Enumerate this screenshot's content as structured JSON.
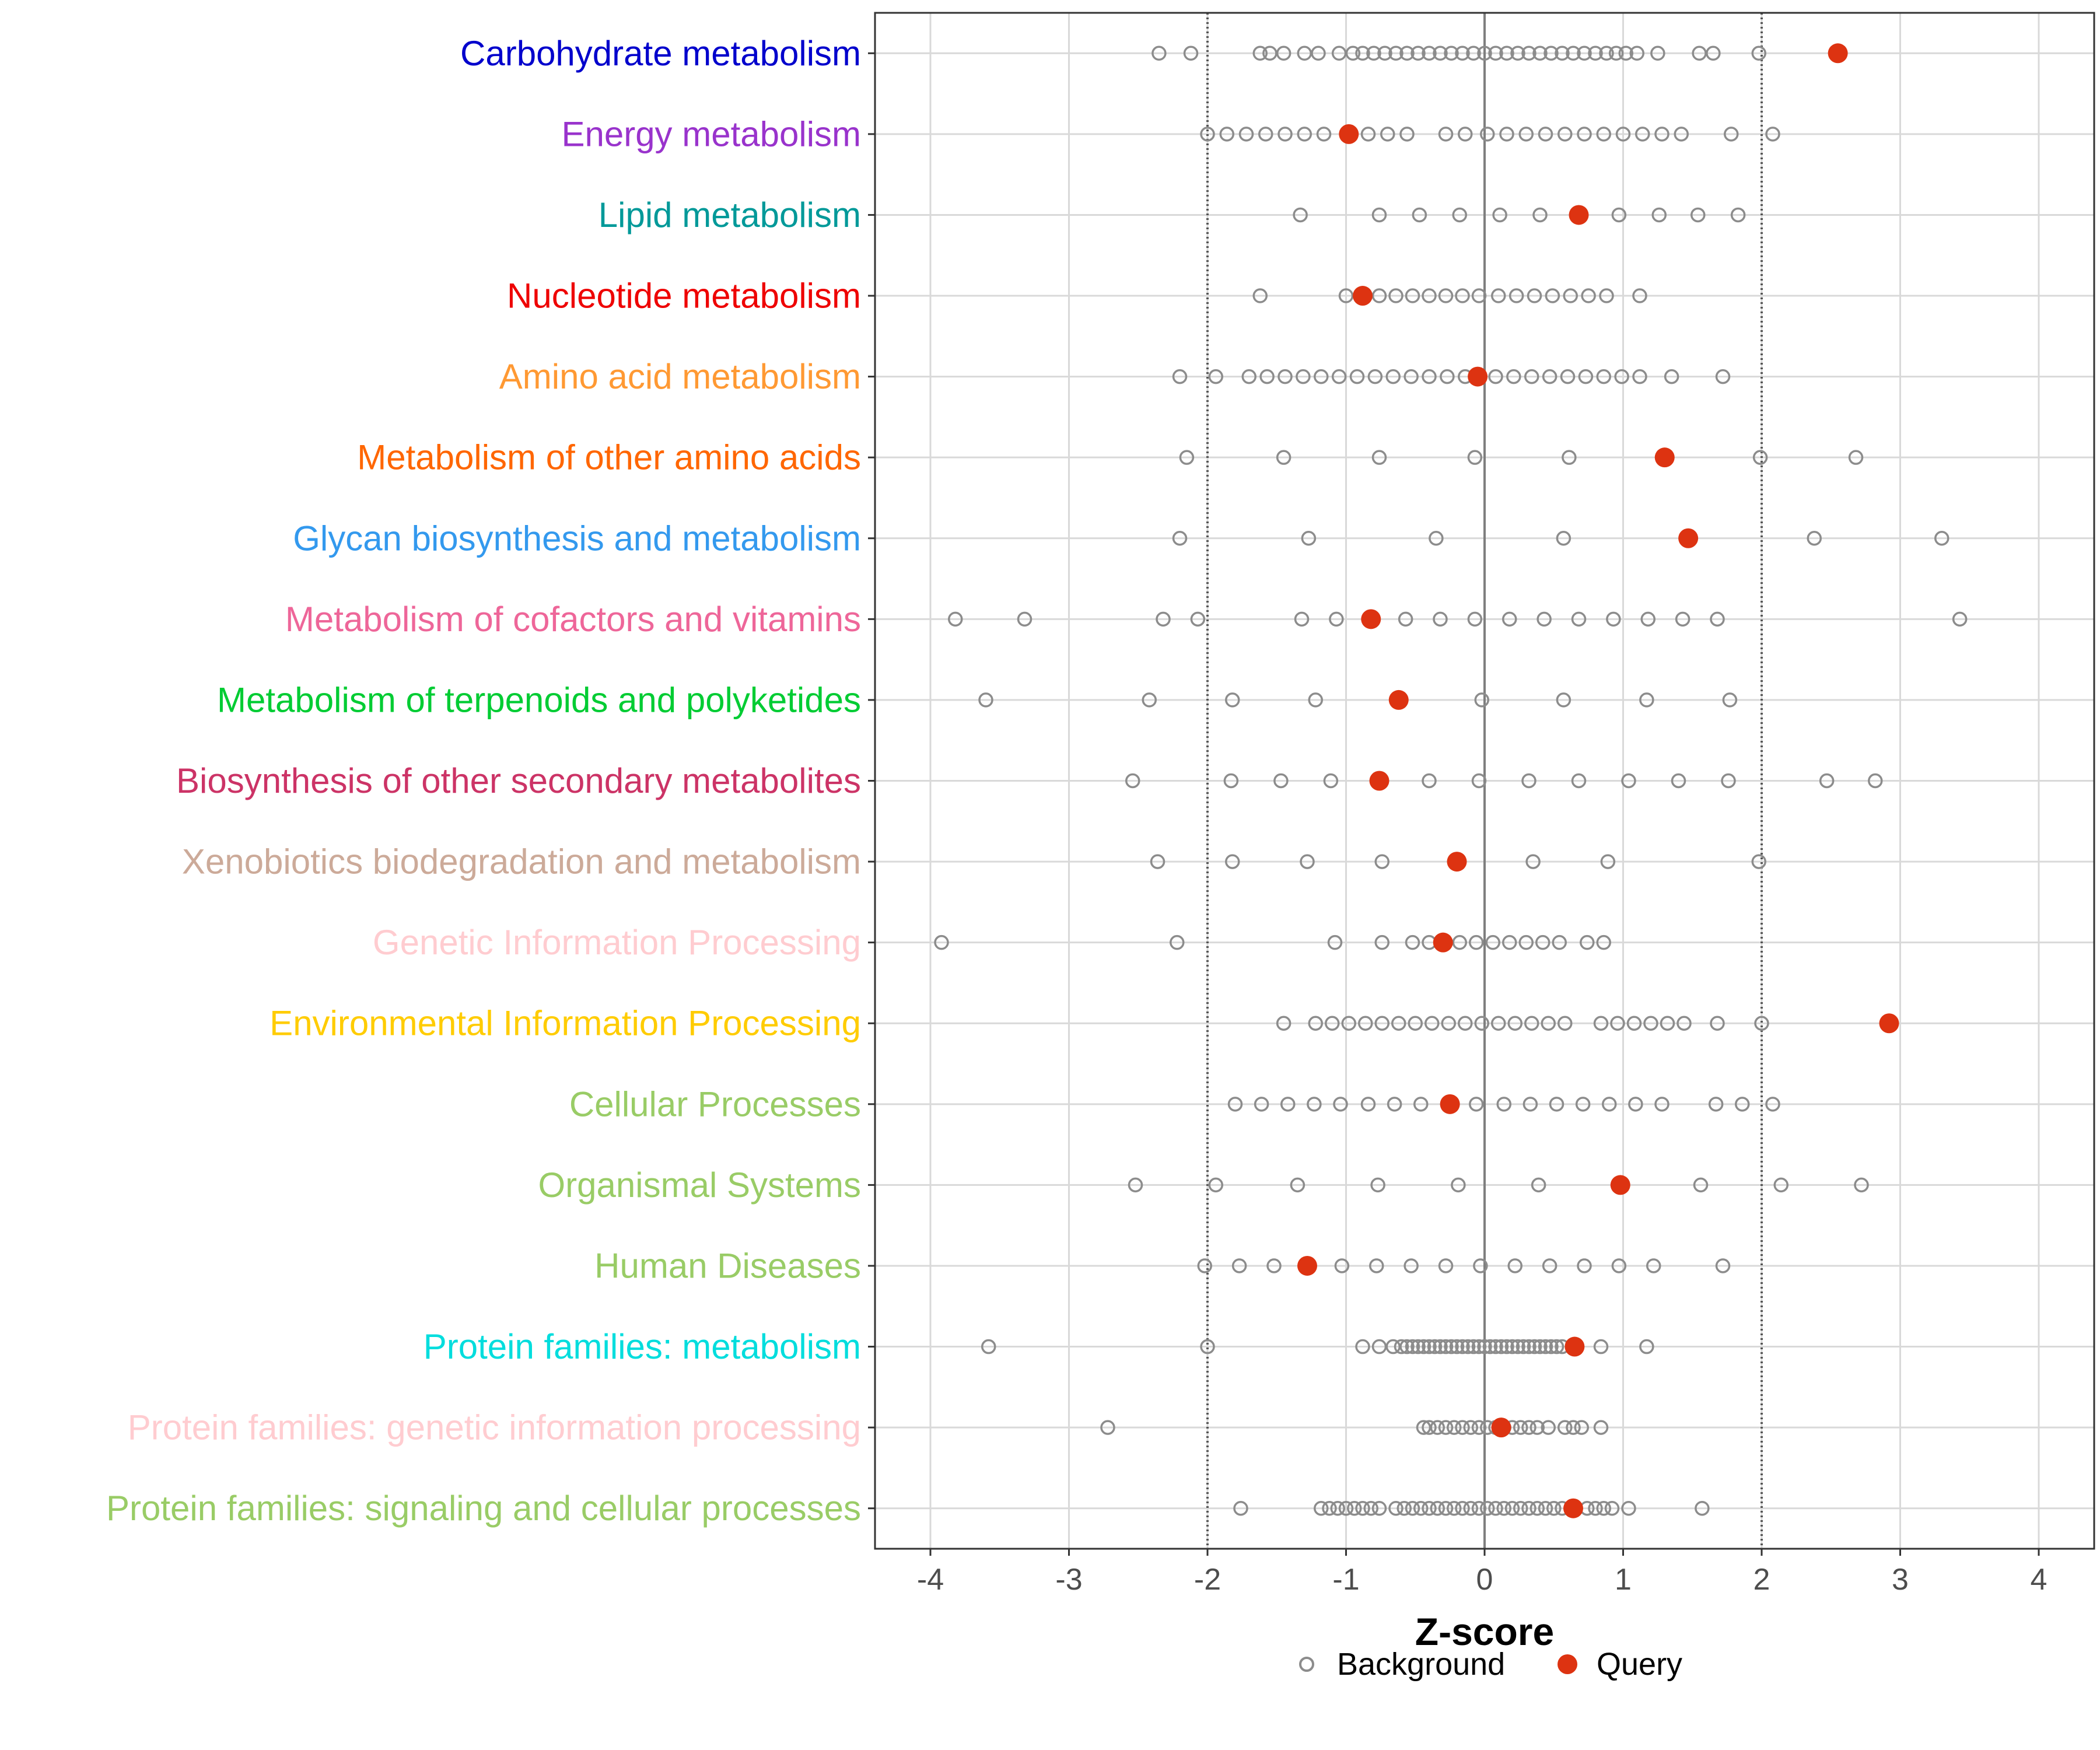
{
  "chart_data": {
    "type": "scatter",
    "xlabel": "Z-score",
    "xlim": [
      -4.4,
      4.4
    ],
    "xticks": [
      -4,
      -3,
      -2,
      -1,
      0,
      1,
      2,
      3,
      4
    ],
    "xtick_labels": [
      "-4",
      "-3",
      "-2",
      "-1",
      "0",
      "1",
      "2",
      "3",
      "4"
    ],
    "reference_lines": [
      -2,
      0,
      2
    ],
    "legend": {
      "position": "bottom",
      "entries": [
        "Background",
        "Query"
      ]
    },
    "colors": {
      "background": "#8c8c8c",
      "query": "#dd3311",
      "grid": "#d9d9d9"
    },
    "categories": [
      {
        "label": "Carbohydrate metabolism",
        "color": "#0000cc",
        "query": 2.55,
        "background": [
          -2.35,
          -2.12,
          -1.62,
          -1.55,
          -1.45,
          -1.3,
          -1.2,
          -1.05,
          -0.95,
          -0.88,
          -0.8,
          -0.72,
          -0.64,
          -0.56,
          -0.48,
          -0.4,
          -0.32,
          -0.24,
          -0.16,
          -0.08,
          0.0,
          0.08,
          0.16,
          0.24,
          0.32,
          0.4,
          0.48,
          0.56,
          0.64,
          0.72,
          0.8,
          0.88,
          0.95,
          1.02,
          1.1,
          1.25,
          1.55,
          1.65,
          1.98
        ]
      },
      {
        "label": "Energy metabolism",
        "color": "#9933cc",
        "query": -0.98,
        "background": [
          -2.0,
          -1.86,
          -1.72,
          -1.58,
          -1.44,
          -1.3,
          -1.16,
          -0.98,
          -0.84,
          -0.7,
          -0.56,
          -0.28,
          -0.14,
          0.02,
          0.16,
          0.3,
          0.44,
          0.58,
          0.72,
          0.86,
          1.0,
          1.14,
          1.28,
          1.42,
          1.78,
          2.08
        ]
      },
      {
        "label": "Lipid metabolism",
        "color": "#009999",
        "query": 0.68,
        "background": [
          -1.33,
          -0.76,
          -0.47,
          -0.18,
          0.11,
          0.4,
          0.68,
          0.97,
          1.26,
          1.54,
          1.83
        ]
      },
      {
        "label": "Nucleotide metabolism",
        "color": "#ee0000",
        "query": -0.88,
        "background": [
          -1.62,
          -1.0,
          -0.88,
          -0.76,
          -0.64,
          -0.52,
          -0.4,
          -0.28,
          -0.16,
          -0.04,
          0.1,
          0.23,
          0.36,
          0.49,
          0.62,
          0.75,
          0.88,
          1.12
        ]
      },
      {
        "label": "Amino acid metabolism",
        "color": "#ff9933",
        "query": -0.05,
        "background": [
          -2.2,
          -1.94,
          -1.7,
          -1.57,
          -1.44,
          -1.31,
          -1.18,
          -1.05,
          -0.92,
          -0.79,
          -0.66,
          -0.53,
          -0.4,
          -0.27,
          -0.14,
          -0.05,
          0.08,
          0.21,
          0.34,
          0.47,
          0.6,
          0.73,
          0.86,
          0.99,
          1.12,
          1.35,
          1.72
        ]
      },
      {
        "label": "Metabolism of other amino acids",
        "color": "#ff6600",
        "query": 1.3,
        "background": [
          -2.15,
          -1.45,
          -0.76,
          -0.07,
          0.61,
          1.3,
          1.99,
          2.68
        ]
      },
      {
        "label": "Glycan biosynthesis and metabolism",
        "color": "#3399ee",
        "query": 1.47,
        "background": [
          -2.2,
          -1.27,
          -0.35,
          0.57,
          1.47,
          2.38,
          3.3
        ]
      },
      {
        "label": "Metabolism of cofactors and vitamins",
        "color": "#ee6699",
        "query": -0.82,
        "background": [
          -3.82,
          -3.32,
          -2.32,
          -2.07,
          -1.32,
          -1.07,
          -0.82,
          -0.57,
          -0.32,
          -0.07,
          0.18,
          0.43,
          0.68,
          0.93,
          1.18,
          1.43,
          1.68,
          3.43
        ]
      },
      {
        "label": "Metabolism of terpenoids and polyketides",
        "color": "#00cc33",
        "query": -0.62,
        "background": [
          -3.6,
          -2.42,
          -1.82,
          -1.22,
          -0.62,
          -0.02,
          0.57,
          1.17,
          1.77
        ]
      },
      {
        "label": "Biosynthesis of other secondary metabolites",
        "color": "#cc3366",
        "query": -0.76,
        "background": [
          -2.54,
          -1.83,
          -1.47,
          -1.11,
          -0.76,
          -0.4,
          -0.04,
          0.32,
          0.68,
          1.04,
          1.4,
          1.76,
          2.47,
          2.82
        ]
      },
      {
        "label": "Xenobiotics biodegradation and metabolism",
        "color": "#ccaa99",
        "query": -0.2,
        "background": [
          -2.36,
          -1.82,
          -1.28,
          -0.74,
          -0.2,
          0.35,
          0.89,
          1.98
        ]
      },
      {
        "label": "Genetic Information Processing",
        "color": "#ffccd0",
        "query": -0.3,
        "background": [
          -3.92,
          -2.22,
          -1.08,
          -0.74,
          -0.52,
          -0.4,
          -0.3,
          -0.18,
          -0.06,
          0.06,
          0.18,
          0.3,
          0.42,
          0.54,
          0.74,
          0.86
        ]
      },
      {
        "label": "Environmental Information Processing",
        "color": "#ffcc00",
        "query": 2.92,
        "background": [
          -1.45,
          -1.22,
          -1.1,
          -0.98,
          -0.86,
          -0.74,
          -0.62,
          -0.5,
          -0.38,
          -0.26,
          -0.14,
          -0.02,
          0.1,
          0.22,
          0.34,
          0.46,
          0.58,
          0.84,
          0.96,
          1.08,
          1.2,
          1.32,
          1.44,
          1.68,
          2.0
        ]
      },
      {
        "label": "Cellular Processes",
        "color": "#99cc66",
        "query": -0.25,
        "background": [
          -1.8,
          -1.61,
          -1.42,
          -1.23,
          -1.04,
          -0.84,
          -0.65,
          -0.46,
          -0.25,
          -0.06,
          0.14,
          0.33,
          0.52,
          0.71,
          0.9,
          1.09,
          1.28,
          1.67,
          1.86,
          2.08
        ]
      },
      {
        "label": "Organismal Systems",
        "color": "#99cc66",
        "query": 0.98,
        "background": [
          -2.52,
          -1.94,
          -1.35,
          -0.77,
          -0.19,
          0.39,
          0.98,
          1.56,
          2.14,
          2.72
        ]
      },
      {
        "label": "Human Diseases",
        "color": "#99cc66",
        "query": -1.28,
        "background": [
          -2.02,
          -1.77,
          -1.52,
          -1.28,
          -1.03,
          -0.78,
          -0.53,
          -0.28,
          -0.03,
          0.22,
          0.47,
          0.72,
          0.97,
          1.22,
          1.72
        ]
      },
      {
        "label": "Protein families: metabolism",
        "color": "#00dddd",
        "query": 0.65,
        "background": [
          -3.58,
          -2.0,
          -0.88,
          -0.76,
          -0.66,
          -0.6,
          -0.56,
          -0.52,
          -0.48,
          -0.44,
          -0.4,
          -0.36,
          -0.32,
          -0.28,
          -0.24,
          -0.2,
          -0.16,
          -0.12,
          -0.08,
          -0.04,
          0.0,
          0.04,
          0.08,
          0.12,
          0.16,
          0.2,
          0.24,
          0.28,
          0.32,
          0.36,
          0.4,
          0.44,
          0.48,
          0.52,
          0.56,
          0.84,
          1.17
        ]
      },
      {
        "label": "Protein families: genetic information processing",
        "color": "#ffccd0",
        "query": 0.12,
        "background": [
          -2.72,
          -0.44,
          -0.4,
          -0.34,
          -0.28,
          -0.22,
          -0.16,
          -0.1,
          -0.04,
          0.02,
          0.08,
          0.14,
          0.2,
          0.26,
          0.32,
          0.38,
          0.46,
          0.58,
          0.64,
          0.7,
          0.84
        ]
      },
      {
        "label": "Protein families: signaling and cellular processes",
        "color": "#99cc66",
        "query": 0.64,
        "background": [
          -1.76,
          -1.18,
          -1.12,
          -1.06,
          -1.0,
          -0.94,
          -0.88,
          -0.82,
          -0.76,
          -0.64,
          -0.58,
          -0.52,
          -0.46,
          -0.4,
          -0.34,
          -0.28,
          -0.22,
          -0.16,
          -0.1,
          -0.04,
          0.02,
          0.08,
          0.14,
          0.2,
          0.26,
          0.32,
          0.38,
          0.44,
          0.5,
          0.56,
          0.64,
          0.74,
          0.8,
          0.86,
          0.92,
          1.04,
          1.57
        ]
      }
    ]
  }
}
